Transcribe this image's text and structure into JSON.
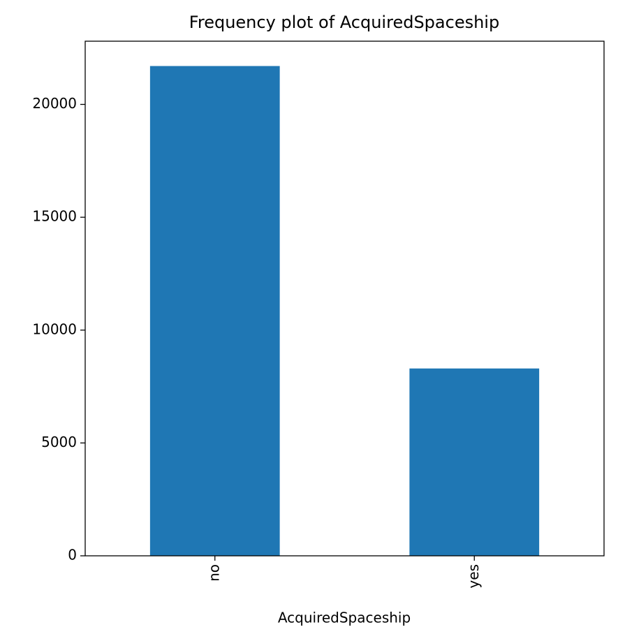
{
  "chart_data": {
    "type": "bar",
    "title": "Frequency plot of AcquiredSpaceship",
    "x_label": "AcquiredSpaceship",
    "categories": [
      "no",
      "yes"
    ],
    "values": [
      21700,
      8300
    ],
    "color": "#1f77b4",
    "ylim": [
      0,
      22800
    ],
    "yticks": [
      0,
      5000,
      10000,
      15000,
      20000
    ],
    "grid": false
  }
}
